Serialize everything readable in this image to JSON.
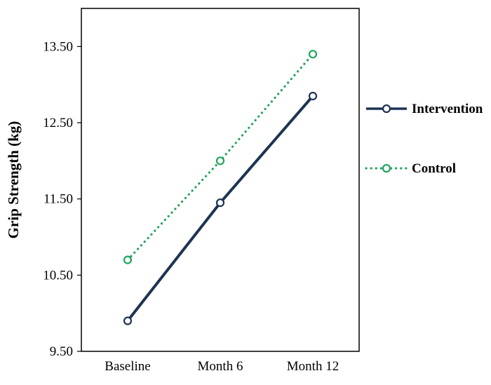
{
  "chart_data": {
    "type": "line",
    "title": "",
    "xlabel": "",
    "ylabel": "Grip Strength (kg)",
    "categories": [
      "Baseline",
      "Month 6",
      "Month 12"
    ],
    "series": [
      {
        "name": "Intervention",
        "values": [
          9.9,
          11.45,
          12.85
        ],
        "color": "#1d3352",
        "style": "solid"
      },
      {
        "name": "Control",
        "values": [
          10.7,
          12.0,
          13.4
        ],
        "color": "#21a35c",
        "style": "dotted"
      }
    ],
    "ylim": [
      9.5,
      14.0
    ],
    "yticks": [
      9.5,
      10.5,
      11.5,
      12.5,
      13.5
    ],
    "ytick_format_decimals": 2,
    "grid": false,
    "marker": "open-circle",
    "legend_position": "right"
  }
}
